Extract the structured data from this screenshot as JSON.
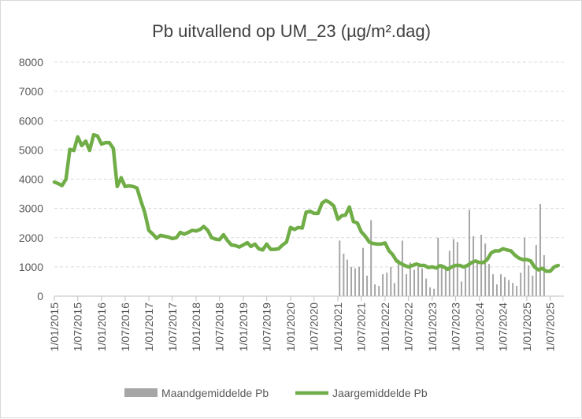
{
  "chart_data": {
    "type": "bar+line",
    "title": "Pb uitvallend op UM_23 (µg/m².dag)",
    "xlabel": "",
    "ylabel": "",
    "ylim": [
      0,
      8000
    ],
    "y_ticks": [
      0,
      1000,
      2000,
      3000,
      4000,
      5000,
      6000,
      7000,
      8000
    ],
    "x_ticks": [
      "1/01/2015",
      "1/07/2015",
      "1/01/2016",
      "1/07/2016",
      "1/01/2017",
      "1/07/2017",
      "1/01/2018",
      "1/07/2018",
      "1/01/2019",
      "1/07/2019",
      "1/01/2020",
      "1/07/2020",
      "1/01/2021",
      "1/07/2021",
      "1/01/2022",
      "1/07/2022",
      "1/01/2023",
      "1/07/2023",
      "1/01/2024",
      "1/07/2024",
      "1/01/2025",
      "1/07/2025"
    ],
    "x_range": [
      "2015-01-01",
      "2025-10-15"
    ],
    "grid": "horizontal dashed",
    "legend_position": "bottom",
    "colors": {
      "bars": "#a6a6a6",
      "line": "#70ad47",
      "grid": "#d9d9d9",
      "axis": "#bfbfbf"
    },
    "series": [
      {
        "name": "Maandgemiddelde Pb",
        "type": "bar",
        "points": [
          [
            "2021-01-15",
            1900
          ],
          [
            "2021-02-15",
            1450
          ],
          [
            "2021-03-15",
            1250
          ],
          [
            "2021-04-15",
            1000
          ],
          [
            "2021-05-15",
            950
          ],
          [
            "2021-06-15",
            1000
          ],
          [
            "2021-07-15",
            1650
          ],
          [
            "2021-08-15",
            700
          ],
          [
            "2021-09-15",
            2600
          ],
          [
            "2021-10-15",
            400
          ],
          [
            "2021-11-15",
            350
          ],
          [
            "2021-12-15",
            750
          ],
          [
            "2022-01-15",
            800
          ],
          [
            "2022-02-15",
            1000
          ],
          [
            "2022-03-15",
            450
          ],
          [
            "2022-04-15",
            1250
          ],
          [
            "2022-05-15",
            1900
          ],
          [
            "2022-06-15",
            750
          ],
          [
            "2022-07-15",
            1150
          ],
          [
            "2022-08-15",
            900
          ],
          [
            "2022-09-15",
            1050
          ],
          [
            "2022-10-15",
            950
          ],
          [
            "2022-11-15",
            600
          ],
          [
            "2022-12-15",
            300
          ],
          [
            "2023-01-15",
            250
          ],
          [
            "2023-02-15",
            2000
          ],
          [
            "2023-03-15",
            1100
          ],
          [
            "2023-04-15",
            1000
          ],
          [
            "2023-05-15",
            1550
          ],
          [
            "2023-06-15",
            1950
          ],
          [
            "2023-07-15",
            1850
          ],
          [
            "2023-08-15",
            500
          ],
          [
            "2023-09-15",
            1050
          ],
          [
            "2023-10-15",
            2950
          ],
          [
            "2023-11-15",
            2050
          ],
          [
            "2023-12-15",
            1150
          ],
          [
            "2024-01-15",
            2100
          ],
          [
            "2024-02-15",
            1800
          ],
          [
            "2024-03-15",
            1100
          ],
          [
            "2024-04-15",
            750
          ],
          [
            "2024-05-15",
            400
          ],
          [
            "2024-06-15",
            750
          ],
          [
            "2024-07-15",
            650
          ],
          [
            "2024-08-15",
            550
          ],
          [
            "2024-09-15",
            450
          ],
          [
            "2024-10-15",
            350
          ],
          [
            "2024-11-15",
            800
          ],
          [
            "2024-12-15",
            2000
          ],
          [
            "2025-01-15",
            1050
          ],
          [
            "2025-02-15",
            700
          ],
          [
            "2025-03-15",
            1750
          ],
          [
            "2025-04-15",
            3150
          ],
          [
            "2025-05-15",
            1400
          ]
        ]
      },
      {
        "name": "Jaargemiddelde Pb",
        "type": "line",
        "points": [
          [
            "2015-01-01",
            3900
          ],
          [
            "2015-02-01",
            3850
          ],
          [
            "2015-03-01",
            3780
          ],
          [
            "2015-04-01",
            4000
          ],
          [
            "2015-05-01",
            5020
          ],
          [
            "2015-06-01",
            4980
          ],
          [
            "2015-07-01",
            5450
          ],
          [
            "2015-08-01",
            5150
          ],
          [
            "2015-09-01",
            5300
          ],
          [
            "2015-10-01",
            4980
          ],
          [
            "2015-11-01",
            5520
          ],
          [
            "2015-12-01",
            5480
          ],
          [
            "2016-01-01",
            5200
          ],
          [
            "2016-02-01",
            5250
          ],
          [
            "2016-03-01",
            5250
          ],
          [
            "2016-04-01",
            5050
          ],
          [
            "2016-05-01",
            3750
          ],
          [
            "2016-06-01",
            4050
          ],
          [
            "2016-07-01",
            3750
          ],
          [
            "2016-08-01",
            3770
          ],
          [
            "2016-09-01",
            3750
          ],
          [
            "2016-10-01",
            3700
          ],
          [
            "2016-11-01",
            3250
          ],
          [
            "2016-12-01",
            2850
          ],
          [
            "2017-01-01",
            2250
          ],
          [
            "2017-02-01",
            2120
          ],
          [
            "2017-03-01",
            1980
          ],
          [
            "2017-04-01",
            2080
          ],
          [
            "2017-05-01",
            2050
          ],
          [
            "2017-06-01",
            2020
          ],
          [
            "2017-07-01",
            1970
          ],
          [
            "2017-08-01",
            2000
          ],
          [
            "2017-09-01",
            2180
          ],
          [
            "2017-10-01",
            2120
          ],
          [
            "2017-11-01",
            2180
          ],
          [
            "2017-12-01",
            2250
          ],
          [
            "2018-01-01",
            2230
          ],
          [
            "2018-02-01",
            2280
          ],
          [
            "2018-03-01",
            2380
          ],
          [
            "2018-04-01",
            2250
          ],
          [
            "2018-05-01",
            2000
          ],
          [
            "2018-06-01",
            1950
          ],
          [
            "2018-07-01",
            1930
          ],
          [
            "2018-08-01",
            2100
          ],
          [
            "2018-09-01",
            1900
          ],
          [
            "2018-10-01",
            1750
          ],
          [
            "2018-11-01",
            1730
          ],
          [
            "2018-12-01",
            1680
          ],
          [
            "2019-01-01",
            1750
          ],
          [
            "2019-02-01",
            1830
          ],
          [
            "2019-03-01",
            1700
          ],
          [
            "2019-04-01",
            1780
          ],
          [
            "2019-05-01",
            1620
          ],
          [
            "2019-06-01",
            1580
          ],
          [
            "2019-07-01",
            1780
          ],
          [
            "2019-08-01",
            1600
          ],
          [
            "2019-09-01",
            1600
          ],
          [
            "2019-10-01",
            1620
          ],
          [
            "2019-11-01",
            1750
          ],
          [
            "2019-12-01",
            1850
          ],
          [
            "2020-01-01",
            2350
          ],
          [
            "2020-02-01",
            2280
          ],
          [
            "2020-03-01",
            2350
          ],
          [
            "2020-04-01",
            2330
          ],
          [
            "2020-05-01",
            2870
          ],
          [
            "2020-06-01",
            2900
          ],
          [
            "2020-07-01",
            2830
          ],
          [
            "2020-08-01",
            2830
          ],
          [
            "2020-09-01",
            3180
          ],
          [
            "2020-10-01",
            3270
          ],
          [
            "2020-11-01",
            3200
          ],
          [
            "2020-12-01",
            3080
          ],
          [
            "2021-01-01",
            2630
          ],
          [
            "2021-02-01",
            2750
          ],
          [
            "2021-03-01",
            2770
          ],
          [
            "2021-04-01",
            3050
          ],
          [
            "2021-05-01",
            2550
          ],
          [
            "2021-06-01",
            2500
          ],
          [
            "2021-07-01",
            2200
          ],
          [
            "2021-08-01",
            2050
          ],
          [
            "2021-09-01",
            1850
          ],
          [
            "2021-10-01",
            1800
          ],
          [
            "2021-11-01",
            1780
          ],
          [
            "2021-12-01",
            1780
          ],
          [
            "2022-01-01",
            1820
          ],
          [
            "2022-02-01",
            1550
          ],
          [
            "2022-03-01",
            1420
          ],
          [
            "2022-04-01",
            1200
          ],
          [
            "2022-05-01",
            1120
          ],
          [
            "2022-06-01",
            1050
          ],
          [
            "2022-07-01",
            1000
          ],
          [
            "2022-08-01",
            1050
          ],
          [
            "2022-09-01",
            1100
          ],
          [
            "2022-10-01",
            1050
          ],
          [
            "2022-11-01",
            1050
          ],
          [
            "2022-12-01",
            980
          ],
          [
            "2023-01-01",
            1000
          ],
          [
            "2023-02-01",
            960
          ],
          [
            "2023-03-01",
            1040
          ],
          [
            "2023-04-01",
            1000
          ],
          [
            "2023-05-01",
            920
          ],
          [
            "2023-06-01",
            1000
          ],
          [
            "2023-07-01",
            1050
          ],
          [
            "2023-08-01",
            1050
          ],
          [
            "2023-09-01",
            1000
          ],
          [
            "2023-10-01",
            1050
          ],
          [
            "2023-11-01",
            1150
          ],
          [
            "2023-12-01",
            1200
          ],
          [
            "2024-01-01",
            1150
          ],
          [
            "2024-02-01",
            1150
          ],
          [
            "2024-03-01",
            1250
          ],
          [
            "2024-04-01",
            1480
          ],
          [
            "2024-05-01",
            1550
          ],
          [
            "2024-06-01",
            1550
          ],
          [
            "2024-07-01",
            1620
          ],
          [
            "2024-08-01",
            1580
          ],
          [
            "2024-09-01",
            1550
          ],
          [
            "2024-10-01",
            1400
          ],
          [
            "2024-11-01",
            1300
          ],
          [
            "2024-12-01",
            1250
          ],
          [
            "2025-01-01",
            1250
          ],
          [
            "2025-02-01",
            1200
          ],
          [
            "2025-03-01",
            1000
          ],
          [
            "2025-04-01",
            900
          ],
          [
            "2025-05-01",
            950
          ],
          [
            "2025-06-01",
            850
          ],
          [
            "2025-07-01",
            850
          ],
          [
            "2025-08-01",
            1000
          ],
          [
            "2025-09-01",
            1050
          ]
        ]
      }
    ]
  }
}
